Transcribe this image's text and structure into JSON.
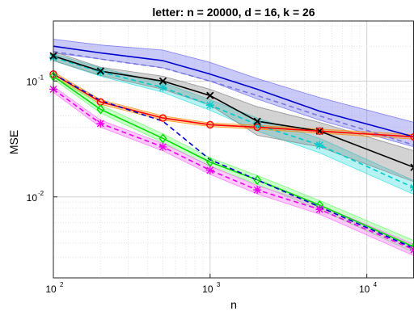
{
  "chart_data": {
    "type": "line",
    "title": "letter: n = 20000, d = 16, k = 26",
    "xlabel": "n",
    "ylabel": "MSE",
    "xscale": "log",
    "yscale": "log",
    "xlim": [
      100,
      20000
    ],
    "ylim": [
      0.002,
      0.33
    ],
    "grid": true,
    "x": [
      100,
      200,
      500,
      1000,
      2000,
      5000,
      20000
    ],
    "x_ticks": [
      {
        "value": 100,
        "base": "10",
        "exp": "2"
      },
      {
        "value": 1000,
        "base": "10",
        "exp": "3"
      },
      {
        "value": 10000,
        "base": "10",
        "exp": "4"
      }
    ],
    "y_ticks": [
      {
        "value": 0.01,
        "base": "10",
        "exp": "-2"
      },
      {
        "value": 0.1,
        "base": "10",
        "exp": "-1"
      }
    ],
    "series": [
      {
        "color": "#0000cc",
        "band_color": "#6666ee",
        "dash": false,
        "marker": "none",
        "values": [
          0.2,
          0.175,
          0.15,
          0.115,
          0.085,
          0.055,
          0.033
        ],
        "lower": [
          0.175,
          0.155,
          0.13,
          0.1,
          0.07,
          0.046,
          0.027
        ],
        "upper": [
          0.23,
          0.205,
          0.185,
          0.145,
          0.105,
          0.072,
          0.044
        ]
      },
      {
        "color": "#7777dd",
        "band_color": "#8888ee",
        "dash": true,
        "marker": "none",
        "values": [
          0.18,
          0.155,
          0.13,
          0.1,
          0.075,
          0.05,
          0.028
        ],
        "lower": null,
        "upper": null
      },
      {
        "color": "#00cccc",
        "band_color": "#33dddd",
        "dash": true,
        "marker": "star",
        "values": [
          0.16,
          0.12,
          0.088,
          0.062,
          0.042,
          0.028,
          0.012
        ],
        "lower": [
          0.15,
          0.11,
          0.08,
          0.056,
          0.037,
          0.024,
          0.0105
        ],
        "upper": [
          0.172,
          0.13,
          0.097,
          0.069,
          0.048,
          0.032,
          0.0138
        ]
      },
      {
        "color": "#000000",
        "band_color": "#808080",
        "dash": false,
        "marker": "x",
        "values": [
          0.165,
          0.122,
          0.1,
          0.075,
          0.045,
          0.037,
          0.018
        ],
        "lower": [
          0.15,
          0.112,
          0.085,
          0.062,
          0.034,
          0.027,
          0.0135
        ],
        "upper": [
          0.18,
          0.132,
          0.11,
          0.085,
          0.06,
          0.044,
          0.025
        ]
      },
      {
        "color": "#ff0000",
        "band_color": "#ff8800",
        "dash": false,
        "marker": "circle",
        "values": [
          0.115,
          0.066,
          0.048,
          0.042,
          0.04,
          0.037,
          0.033
        ],
        "lower": [
          0.11,
          0.063,
          0.046,
          0.0405,
          0.0385,
          0.0355,
          0.0315
        ],
        "upper": [
          0.12,
          0.069,
          0.05,
          0.0435,
          0.0415,
          0.0385,
          0.0345
        ]
      },
      {
        "color": "#00dd00",
        "band_color": "#66ff66",
        "dash": false,
        "marker": "diamond",
        "values": [
          0.11,
          0.057,
          0.032,
          0.02,
          0.014,
          0.0085,
          0.0037
        ],
        "lower": [
          0.104,
          0.053,
          0.0295,
          0.0183,
          0.0128,
          0.0078,
          0.0033
        ],
        "upper": [
          0.117,
          0.062,
          0.035,
          0.0218,
          0.0153,
          0.0093,
          0.0042
        ]
      },
      {
        "color": "#ee00ee",
        "band_color": "#ff66ff",
        "dash": true,
        "marker": "star",
        "values": [
          0.085,
          0.043,
          0.027,
          0.017,
          0.0115,
          0.0078,
          0.0035
        ],
        "lower": [
          0.08,
          0.04,
          0.025,
          0.0157,
          0.0106,
          0.0071,
          0.0031
        ],
        "upper": [
          0.09,
          0.046,
          0.029,
          0.0185,
          0.0125,
          0.0085,
          0.0039
        ]
      },
      {
        "color": "#0000cc",
        "band_color": "#6666ee",
        "dash": true,
        "marker": "none",
        "values": [
          0.115,
          0.068,
          0.045,
          0.021,
          0.014,
          0.0082,
          0.0036
        ],
        "lower": null,
        "upper": null
      }
    ]
  }
}
